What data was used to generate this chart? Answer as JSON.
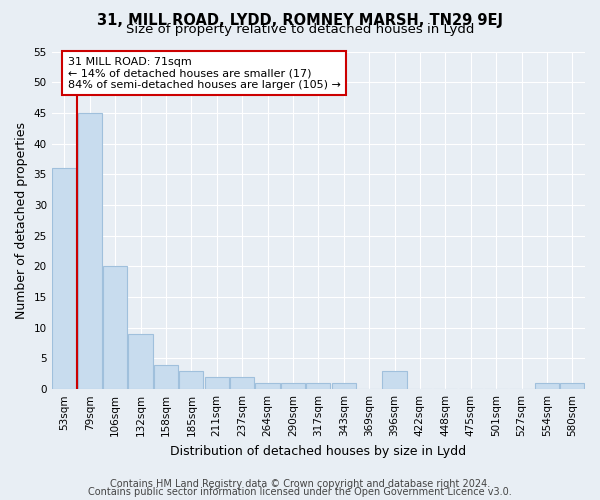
{
  "title": "31, MILL ROAD, LYDD, ROMNEY MARSH, TN29 9EJ",
  "subtitle": "Size of property relative to detached houses in Lydd",
  "xlabel": "Distribution of detached houses by size in Lydd",
  "ylabel": "Number of detached properties",
  "categories": [
    "53sqm",
    "79sqm",
    "106sqm",
    "132sqm",
    "158sqm",
    "185sqm",
    "211sqm",
    "237sqm",
    "264sqm",
    "290sqm",
    "317sqm",
    "343sqm",
    "369sqm",
    "396sqm",
    "422sqm",
    "448sqm",
    "475sqm",
    "501sqm",
    "527sqm",
    "554sqm",
    "580sqm"
  ],
  "values": [
    36,
    45,
    20,
    9,
    4,
    3,
    2,
    2,
    1,
    1,
    1,
    1,
    0,
    3,
    0,
    0,
    0,
    0,
    0,
    1,
    1
  ],
  "bar_color": "#c8dcee",
  "bar_edge_color": "#a0c0dc",
  "vline_color": "#cc0000",
  "annotation_text": "31 MILL ROAD: 71sqm\n← 14% of detached houses are smaller (17)\n84% of semi-detached houses are larger (105) →",
  "annotation_box_color": "#ffffff",
  "annotation_box_edge_color": "#cc0000",
  "ylim": [
    0,
    55
  ],
  "yticks": [
    0,
    5,
    10,
    15,
    20,
    25,
    30,
    35,
    40,
    45,
    50,
    55
  ],
  "footer1": "Contains HM Land Registry data © Crown copyright and database right 2024.",
  "footer2": "Contains public sector information licensed under the Open Government Licence v3.0.",
  "background_color": "#e8eef4",
  "plot_bg_color": "#e8eef4",
  "grid_color": "#ffffff",
  "title_fontsize": 10.5,
  "subtitle_fontsize": 9.5,
  "tick_fontsize": 7.5,
  "label_fontsize": 9,
  "annotation_fontsize": 8,
  "footer_fontsize": 7
}
